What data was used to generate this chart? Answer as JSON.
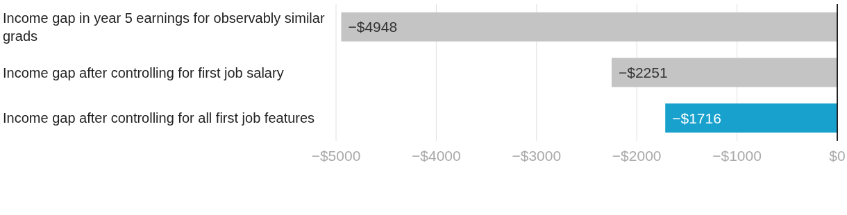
{
  "chart_data": {
    "type": "bar",
    "orientation": "horizontal",
    "categories": [
      "Income gap in year 5 earnings for observably similar grads",
      "Income gap after controlling for first job salary",
      "Income gap after controlling for all first job features"
    ],
    "values": [
      -4948,
      -2251,
      -1716
    ],
    "colors": [
      "#c4c4c4",
      "#c4c4c4",
      "#18a1cd"
    ],
    "value_labels": [
      "−$4948",
      "−$2251",
      "−$1716"
    ],
    "xlim": [
      -5000,
      0
    ],
    "xticks": [
      {
        "value": -5000,
        "label": "−$5000"
      },
      {
        "value": -4000,
        "label": "−$4000"
      },
      {
        "value": -3000,
        "label": "−$3000"
      },
      {
        "value": -2000,
        "label": "−$2000"
      },
      {
        "value": -1000,
        "label": "−$1000"
      },
      {
        "value": 0,
        "label": "$0"
      }
    ],
    "grid": "x"
  }
}
